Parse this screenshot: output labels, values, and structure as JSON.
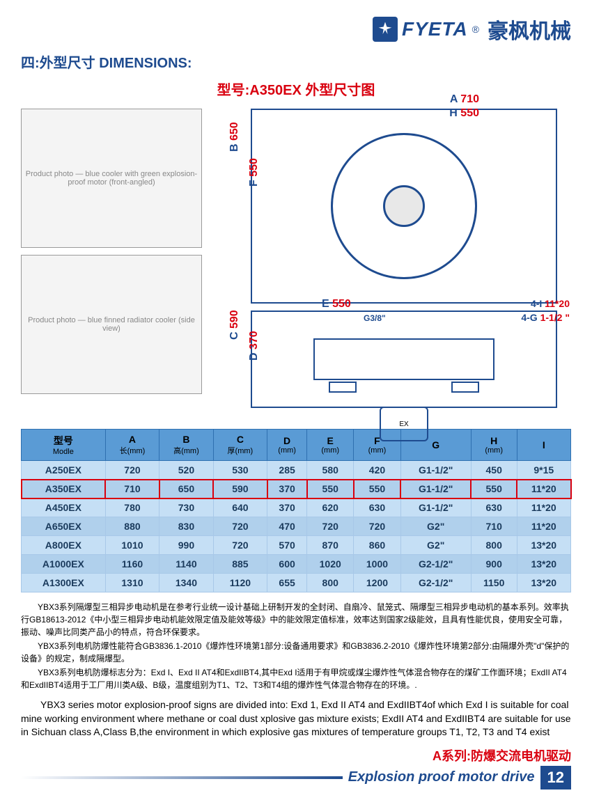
{
  "brand": {
    "en": "FYETA",
    "cn": "豪枫机械",
    "reg": "®"
  },
  "section_title": "四:外型尺寸 DIMENSIONS:",
  "model_title": "型号:A350EX 外型尺寸图",
  "photos": {
    "p1": "Product photo — blue cooler with green explosion-proof motor (front-angled)",
    "p2": "Product photo — blue finned radiator cooler (side view)"
  },
  "drawing": {
    "front": {
      "A": "710",
      "A_prefix": "A",
      "H": "550",
      "H_prefix": "H",
      "B": "650",
      "B_prefix": "B",
      "F": "550",
      "F_prefix": "F"
    },
    "side": {
      "E": "550",
      "E_prefix": "E",
      "G38": "G3/8\"",
      "I": "11*20",
      "I_prefix": "4-I",
      "G": "1-1/2 \"",
      "G_prefix": "4-G",
      "C": "590",
      "C_prefix": "C",
      "D": "370",
      "D_prefix": "D",
      "motor": "EX"
    }
  },
  "table": {
    "headers": [
      {
        "l1": "型号",
        "l2": "Modle"
      },
      {
        "l1": "A",
        "l2": "长(mm)"
      },
      {
        "l1": "B",
        "l2": "高(mm)"
      },
      {
        "l1": "C",
        "l2": "厚(mm)"
      },
      {
        "l1": "D",
        "l2": "(mm)"
      },
      {
        "l1": "E",
        "l2": "(mm)"
      },
      {
        "l1": "F",
        "l2": "(mm)"
      },
      {
        "l1": "G",
        "l2": ""
      },
      {
        "l1": "H",
        "l2": "(mm)"
      },
      {
        "l1": "I",
        "l2": ""
      }
    ],
    "rows": [
      {
        "cells": [
          "A250EX",
          "720",
          "520",
          "530",
          "285",
          "580",
          "420",
          "G1-1/2\"",
          "450",
          "9*15"
        ],
        "hl": false
      },
      {
        "cells": [
          "A350EX",
          "710",
          "650",
          "590",
          "370",
          "550",
          "550",
          "G1-1/2\"",
          "550",
          "11*20"
        ],
        "hl": true
      },
      {
        "cells": [
          "A450EX",
          "780",
          "730",
          "640",
          "370",
          "620",
          "630",
          "G1-1/2\"",
          "630",
          "11*20"
        ],
        "hl": false
      },
      {
        "cells": [
          "A650EX",
          "880",
          "830",
          "720",
          "470",
          "720",
          "720",
          "G2\"",
          "710",
          "11*20"
        ],
        "hl": false
      },
      {
        "cells": [
          "A800EX",
          "1010",
          "990",
          "720",
          "570",
          "870",
          "860",
          "G2\"",
          "800",
          "13*20"
        ],
        "hl": false
      },
      {
        "cells": [
          "A1000EX",
          "1160",
          "1140",
          "885",
          "600",
          "1020",
          "1000",
          "G2-1/2\"",
          "900",
          "13*20"
        ],
        "hl": false
      },
      {
        "cells": [
          "A1300EX",
          "1310",
          "1340",
          "1120",
          "655",
          "800",
          "1200",
          "G2-1/2\"",
          "1150",
          "13*20"
        ],
        "hl": false
      }
    ]
  },
  "notes_cn": [
    "YBX3系列隔爆型三相异步电动机是在参考行业统一设计基础上研制开发的全封闭、自扇冷、鼠笼式、隔爆型三相异步电动机的基本系列。效率执行GB18613-2012《中小型三相异步电动机能效限定值及能效等级》中的能效限定值标准，效率达到国家2级能效，且具有性能优良，使用安全可靠，振动、噪声比同类产品小的特点，符合环保要求。",
    "YBX3系列电机防爆性能符合GB3836.1-2010《爆炸性环境第1部分:设备通用要求》和GB3836.2-2010《爆炸性环境第2部分:由隔爆外壳\"d\"保护的设备》的规定，制成隔爆型。",
    "YBX3系列电机防爆标志分为：Exd I、Exd II AT4和ExdIIBT4,其中Exd I适用于有甲烷或煤尘爆炸性气体混合物存在的煤矿工作面环境；ExdII AT4和ExdIIBT4适用于工厂用川类A级、B级，温度组别为T1、T2、T3和T4组的爆炸性气体混合物存在的环境。."
  ],
  "notes_en": "YBX3 series motor explosion-proof signs are divided into: Exd 1, Exd II AT4 and ExdIIBT4of which Exd I is suitable for coal mine working environment where methane or coal dust xplosive gas mixture exists; ExdII AT4 and ExdIIBT4 are suitable for use in Sichuan class A,Class B,the environment in which explosive gas mixtures of temperature groups T1, T2, T3 and T4 exist",
  "footer": {
    "red": "A系列:防爆交流电机驱动",
    "blue": "Explosion proof motor drive",
    "page": "12"
  }
}
